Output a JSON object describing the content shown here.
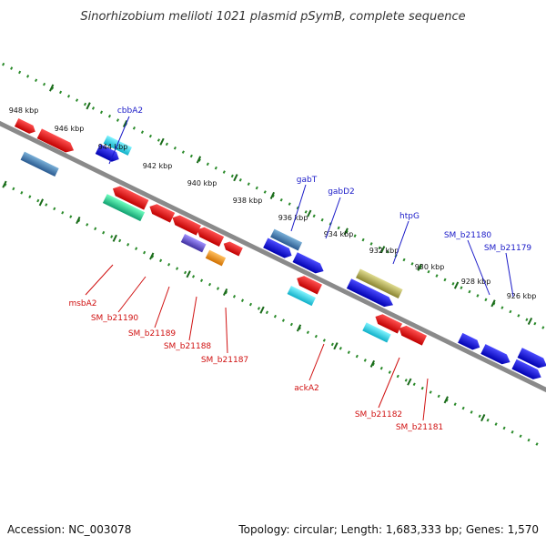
{
  "map": {
    "title": "Sinorhizobium meliloti 1021 plasmid pSymB, complete sequence",
    "accession": "Accession: NC_003078",
    "summary": "Topology: circular; Length: 1,683,333 bp; Genes: 1,570",
    "scale_labels": [
      "948 kbp",
      "946 kbp",
      "944 kbp",
      "942 kbp",
      "940 kbp",
      "938 kbp",
      "936 kbp",
      "934 kbp",
      "932 kbp",
      "930 kbp",
      "928 kbp",
      "926 kbp"
    ],
    "forward_gene_labels": [
      "cbbA2",
      "gabT",
      "gabD2",
      "htpG",
      "SM_b21180",
      "SM_b21179"
    ],
    "reverse_gene_labels": [
      "msbA2",
      "SM_b21190",
      "SM_b21189",
      "SM_b21188",
      "SM_b21187",
      "ackA2",
      "SM_b21182",
      "SM_b21181"
    ]
  },
  "colors": {
    "backbone": "#8a8a8a",
    "scale_dots": "#2a8a2a",
    "forward_label": "#1a1ac8",
    "reverse_label": "#d01010",
    "gene_red": "#e01010",
    "gene_blue": "#1010e0",
    "gene_cyan": "#10c8d8",
    "gene_steel": "#4a80b0",
    "gene_green": "#20d090",
    "gene_purple": "#7050d0",
    "gene_orange": "#f09010",
    "gene_olive": "#b8b050",
    "gene_teal": "#30a8b8"
  }
}
